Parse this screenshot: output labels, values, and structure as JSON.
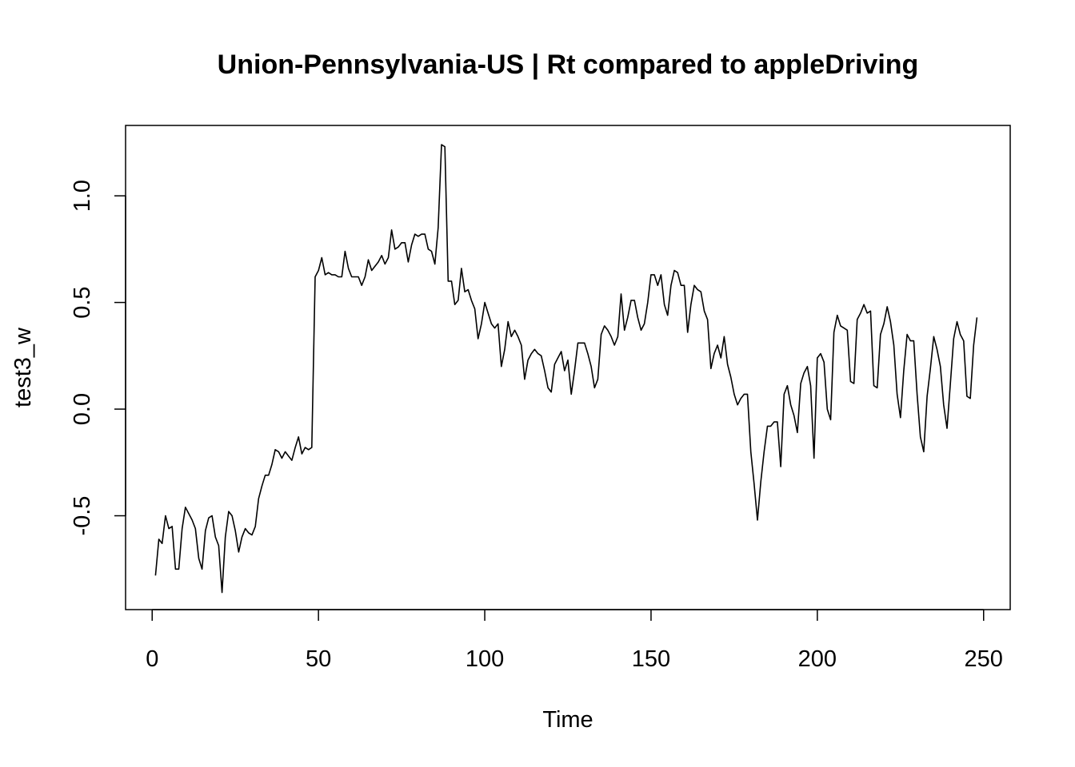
{
  "chart_data": {
    "type": "line",
    "title": "Union-Pennsylvania-US | Rt compared to appleDriving",
    "xlabel": "Time",
    "ylabel": "test3_w",
    "xlim": [
      -8,
      258
    ],
    "ylim": [
      -0.94,
      1.33
    ],
    "x_ticks": [
      0,
      50,
      100,
      150,
      200,
      250
    ],
    "y_ticks": [
      -0.5,
      0.0,
      0.5,
      1.0
    ],
    "x_tick_labels": [
      "0",
      "50",
      "100",
      "150",
      "200",
      "250"
    ],
    "y_tick_labels": [
      "-0.5",
      "0.0",
      "0.5",
      "1.0"
    ],
    "grid": false,
    "legend": "none",
    "line_color": "#000000",
    "series": [
      {
        "x_start": 1,
        "values": [
          -0.78,
          -0.61,
          -0.63,
          -0.5,
          -0.56,
          -0.55,
          -0.75,
          -0.75,
          -0.56,
          -0.46,
          -0.49,
          -0.52,
          -0.56,
          -0.7,
          -0.75,
          -0.57,
          -0.51,
          -0.5,
          -0.6,
          -0.64,
          -0.86,
          -0.6,
          -0.48,
          -0.5,
          -0.57,
          -0.67,
          -0.6,
          -0.56,
          -0.58,
          -0.59,
          -0.55,
          -0.42,
          -0.36,
          -0.31,
          -0.31,
          -0.26,
          -0.19,
          -0.2,
          -0.23,
          -0.2,
          -0.22,
          -0.24,
          -0.18,
          -0.13,
          -0.21,
          -0.18,
          -0.19,
          -0.18,
          0.62,
          0.65,
          0.71,
          0.63,
          0.64,
          0.63,
          0.63,
          0.62,
          0.62,
          0.74,
          0.66,
          0.62,
          0.62,
          0.62,
          0.58,
          0.62,
          0.7,
          0.65,
          0.67,
          0.69,
          0.72,
          0.68,
          0.71,
          0.84,
          0.75,
          0.76,
          0.78,
          0.78,
          0.69,
          0.77,
          0.82,
          0.81,
          0.82,
          0.82,
          0.75,
          0.74,
          0.68,
          0.85,
          1.24,
          1.23,
          0.6,
          0.6,
          0.49,
          0.51,
          0.66,
          0.55,
          0.56,
          0.51,
          0.47,
          0.33,
          0.4,
          0.5,
          0.45,
          0.4,
          0.38,
          0.4,
          0.2,
          0.28,
          0.41,
          0.34,
          0.37,
          0.34,
          0.3,
          0.14,
          0.23,
          0.26,
          0.28,
          0.26,
          0.25,
          0.18,
          0.1,
          0.08,
          0.21,
          0.24,
          0.27,
          0.18,
          0.23,
          0.07,
          0.18,
          0.31,
          0.31,
          0.31,
          0.26,
          0.2,
          0.1,
          0.14,
          0.35,
          0.39,
          0.37,
          0.34,
          0.3,
          0.34,
          0.54,
          0.37,
          0.43,
          0.51,
          0.51,
          0.43,
          0.37,
          0.4,
          0.5,
          0.63,
          0.63,
          0.58,
          0.63,
          0.49,
          0.44,
          0.58,
          0.65,
          0.64,
          0.58,
          0.58,
          0.36,
          0.49,
          0.58,
          0.56,
          0.55,
          0.46,
          0.42,
          0.19,
          0.26,
          0.3,
          0.24,
          0.34,
          0.21,
          0.15,
          0.07,
          0.02,
          0.05,
          0.07,
          0.07,
          -0.2,
          -0.35,
          -0.52,
          -0.34,
          -0.2,
          -0.08,
          -0.08,
          -0.06,
          -0.06,
          -0.27,
          0.07,
          0.11,
          0.02,
          -0.03,
          -0.11,
          0.12,
          0.17,
          0.2,
          0.11,
          -0.23,
          0.24,
          0.26,
          0.22,
          0.0,
          -0.05,
          0.36,
          0.44,
          0.39,
          0.38,
          0.37,
          0.13,
          0.12,
          0.42,
          0.45,
          0.49,
          0.45,
          0.46,
          0.11,
          0.1,
          0.35,
          0.4,
          0.48,
          0.41,
          0.3,
          0.07,
          -0.04,
          0.18,
          0.35,
          0.32,
          0.32,
          0.07,
          -0.13,
          -0.2,
          0.06,
          0.19,
          0.34,
          0.28,
          0.2,
          0.02,
          -0.09,
          0.12,
          0.33,
          0.41,
          0.35,
          0.32,
          0.06,
          0.05,
          0.3,
          0.43
        ]
      }
    ]
  }
}
